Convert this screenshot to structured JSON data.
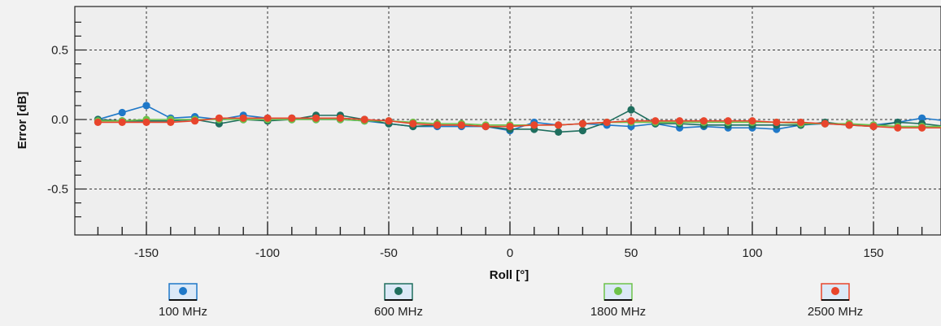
{
  "chart_data": {
    "type": "line",
    "title": "",
    "xlabel": "Roll [°]",
    "ylabel": "Error [dB]",
    "xlim": [
      -180,
      180
    ],
    "ylim": [
      -0.8,
      0.8
    ],
    "xticks": [
      -150,
      -100,
      -50,
      0,
      50,
      100,
      150
    ],
    "xtick_labels": [
      "-150",
      "-100",
      "-50",
      "0",
      "50",
      "100",
      "150"
    ],
    "yticks": [
      0.5,
      0.0,
      -0.5
    ],
    "ytick_labels": [
      "0.5",
      "0.0",
      "-0.5"
    ],
    "grid": true,
    "legend_position": "bottom",
    "x": [
      -170,
      -160,
      -150,
      -140,
      -130,
      -120,
      -110,
      -100,
      -90,
      -80,
      -70,
      -60,
      -50,
      -40,
      -30,
      -20,
      -10,
      0,
      10,
      20,
      30,
      40,
      50,
      60,
      70,
      80,
      90,
      100,
      110,
      120,
      130,
      140,
      150,
      160,
      170,
      180
    ],
    "series": [
      {
        "name": "100 MHz",
        "color": "#1f78c8",
        "values": [
          0.0,
          0.05,
          0.1,
          0.01,
          0.02,
          0.0,
          0.03,
          0.01,
          0.01,
          0.0,
          0.0,
          -0.01,
          -0.03,
          -0.05,
          -0.05,
          -0.05,
          -0.05,
          -0.08,
          -0.02,
          -0.04,
          -0.03,
          -0.04,
          -0.05,
          -0.03,
          -0.06,
          -0.05,
          -0.06,
          -0.06,
          -0.07,
          -0.04,
          -0.03,
          -0.04,
          -0.04,
          -0.02,
          0.01,
          -0.01
        ]
      },
      {
        "name": "600 MHz",
        "color": "#1f6e5e",
        "values": [
          0.0,
          -0.01,
          -0.01,
          -0.01,
          0.0,
          -0.03,
          0.0,
          -0.01,
          0.0,
          0.03,
          0.03,
          0.0,
          -0.03,
          -0.05,
          -0.04,
          -0.04,
          -0.05,
          -0.07,
          -0.07,
          -0.09,
          -0.08,
          -0.02,
          0.07,
          -0.03,
          -0.03,
          -0.04,
          -0.04,
          -0.04,
          -0.04,
          -0.04,
          -0.02,
          -0.04,
          -0.05,
          -0.02,
          -0.03,
          -0.05
        ]
      },
      {
        "name": "1800 MHz",
        "color": "#6cc24a",
        "values": [
          -0.01,
          -0.01,
          0.0,
          0.0,
          0.0,
          0.0,
          0.0,
          0.0,
          0.0,
          0.0,
          0.0,
          -0.01,
          -0.01,
          -0.02,
          -0.03,
          -0.03,
          -0.04,
          -0.04,
          -0.04,
          -0.04,
          -0.03,
          -0.02,
          -0.02,
          -0.02,
          -0.02,
          -0.02,
          -0.02,
          -0.02,
          -0.02,
          -0.03,
          -0.03,
          -0.03,
          -0.04,
          -0.05,
          -0.05,
          -0.05
        ]
      },
      {
        "name": "2500 MHz",
        "color": "#e8452c",
        "values": [
          -0.02,
          -0.02,
          -0.02,
          -0.02,
          -0.01,
          0.01,
          0.01,
          0.01,
          0.01,
          0.01,
          0.01,
          0.0,
          -0.01,
          -0.03,
          -0.04,
          -0.04,
          -0.05,
          -0.05,
          -0.04,
          -0.04,
          -0.03,
          -0.02,
          -0.01,
          -0.01,
          -0.01,
          -0.01,
          -0.01,
          -0.01,
          -0.02,
          -0.02,
          -0.03,
          -0.04,
          -0.05,
          -0.06,
          -0.06,
          -0.06
        ]
      }
    ]
  }
}
